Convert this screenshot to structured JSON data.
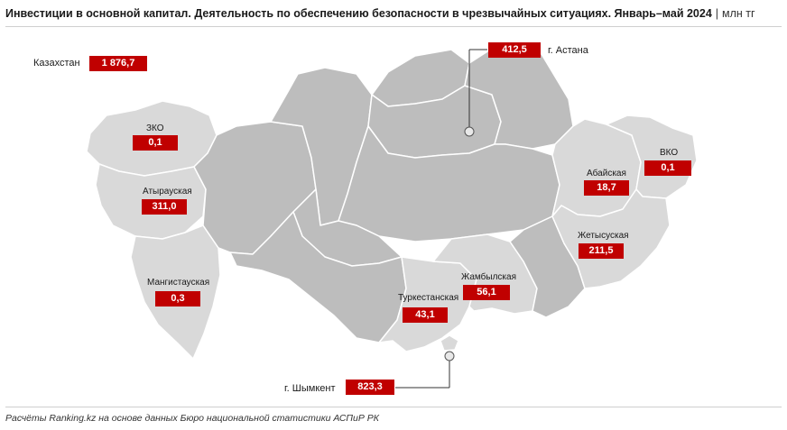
{
  "title": {
    "main": "Инвестиции в основной капитал. Деятельность по обеспечению безопасности в чрезвычайных ситуациях. Январь–май 2024",
    "separator": "|",
    "unit": "млн тг"
  },
  "colors": {
    "value_box": "#c00000",
    "region_dark": "#bdbdbd",
    "region_light": "#d9d9d9",
    "border": "#ffffff"
  },
  "kazakhstan": {
    "label": "Казахстан",
    "value": "1 876,7"
  },
  "regions": {
    "zko": {
      "label": "ЗКО",
      "value": "0,1"
    },
    "atyrau": {
      "label": "Атырауская",
      "value": "311,0"
    },
    "mangystau": {
      "label": "Мангистауская",
      "value": "0,3"
    },
    "abai": {
      "label": "Абайская",
      "value": "18,7"
    },
    "vko": {
      "label": "ВКО",
      "value": "0,1"
    },
    "zhetysu": {
      "label": "Жетысуская",
      "value": "211,5"
    },
    "zhambyl": {
      "label": "Жамбылская",
      "value": "56,1"
    },
    "turkestan": {
      "label": "Туркестанская",
      "value": "43,1"
    },
    "astana": {
      "label": "г. Астана",
      "value": "412,5"
    },
    "shymkent": {
      "label": "г. Шымкент",
      "value": "823,3"
    }
  },
  "footer": "Расчёты Ranking.kz на основе данных Бюро национальной статистики АСПиР РК"
}
